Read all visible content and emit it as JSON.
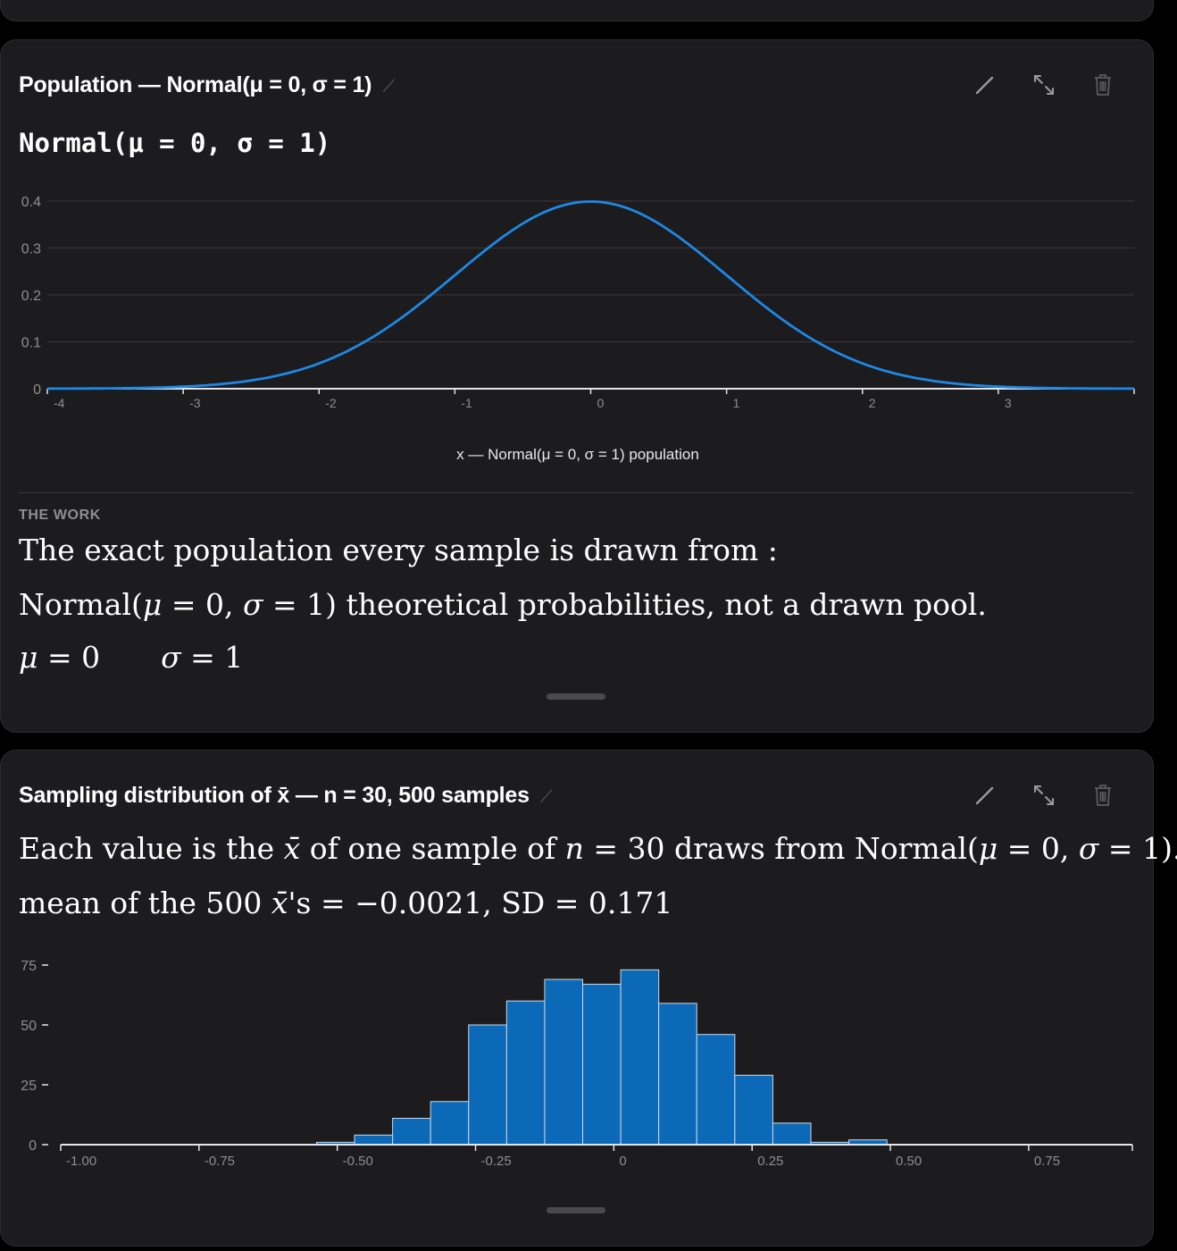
{
  "colors": {
    "background": "#000000",
    "card": "#1c1c1e",
    "curve": "#1e88e5",
    "bars": "#0b69b7",
    "bar_edge": "#cfd8e3",
    "grid": "#3a3a3c"
  },
  "icons": [
    "pencil-icon",
    "expand-icon",
    "trash-icon"
  ],
  "population_card": {
    "title": "Population — Normal(μ = 0, σ = 1)",
    "formula": "Normal(μ = 0, σ = 1)",
    "section_label": "THE WORK",
    "work_line1": "The exact population every sample is drawn from :",
    "work_line2_head": "Normal(",
    "work_line2_mu": "μ",
    "work_line2_mid": " = 0,  ",
    "work_line2_sigma": "σ",
    "work_line2_tail": " = 1)   theoretical probabilities,  not a drawn pool.",
    "mu_sym": "μ",
    "mu_val": " = 0",
    "sigma_sym": "σ",
    "sigma_val": " = 1"
  },
  "sampling_card": {
    "title": "Sampling distribution of x̄ — n = 30, 500 samples",
    "line1_a": "Each value is the ",
    "line1_xbar": "x̄",
    "line1_b": " of one sample of ",
    "line1_n": "n",
    "line1_c": " = 30 draws from Normal(",
    "line1_mu": "μ",
    "line1_d": " = 0,  ",
    "line1_sigma": "σ",
    "line1_e": " = 1).",
    "line2_a": "mean of the 500 ",
    "line2_xbar": "x̄",
    "line2_b": "'s = −0.0021,  SD = 0.171"
  },
  "chart_data": [
    {
      "type": "line",
      "curve": "normal-pdf",
      "mu": 0,
      "sigma": 1,
      "xlim": [
        -4,
        4
      ],
      "ylim": [
        0,
        0.4
      ],
      "x_ticks": [
        -4,
        -3,
        -2,
        -1,
        0,
        1,
        2,
        3
      ],
      "x_tick_labels": [
        "-4",
        "-3",
        "-2",
        "-1",
        "0",
        "1",
        "2",
        "3"
      ],
      "y_ticks": [
        0,
        0.1,
        0.2,
        0.3,
        0.4
      ],
      "y_tick_labels": [
        "0",
        "0.1",
        "0.2",
        "0.3",
        "0.4"
      ],
      "xlabel": "x — Normal(μ = 0, σ = 1) population",
      "grid": true
    },
    {
      "type": "bar",
      "bin_width": 0.06875,
      "bin_start": -0.5375,
      "values": [
        1,
        4,
        11,
        18,
        50,
        60,
        69,
        67,
        73,
        59,
        46,
        29,
        9,
        1,
        2
      ],
      "xlim": [
        -1.0,
        0.9375
      ],
      "ylim": [
        0,
        75
      ],
      "x_ticks": [
        -1.0,
        -0.75,
        -0.5,
        -0.25,
        0,
        0.25,
        0.5,
        0.75
      ],
      "x_tick_labels": [
        "-1.00",
        "-0.75",
        "-0.50",
        "-0.25",
        "0",
        "0.25",
        "0.50",
        "0.75"
      ],
      "y_ticks": [
        0,
        25,
        50,
        75
      ],
      "y_tick_labels": [
        "0",
        "25",
        "50",
        "75"
      ],
      "grid": false
    }
  ]
}
